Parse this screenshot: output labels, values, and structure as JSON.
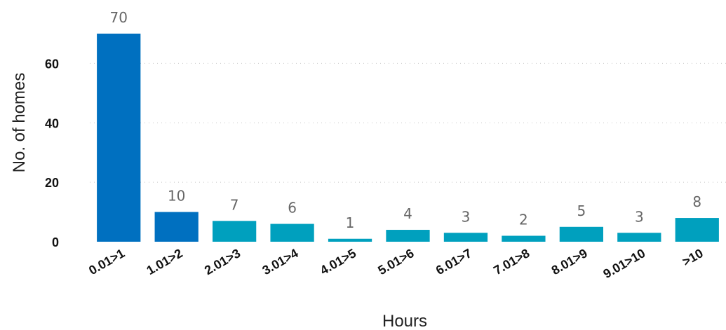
{
  "chart_data": {
    "type": "bar",
    "categories": [
      "0.01>1",
      "1.01>2",
      "2.01>3",
      "3.01>4",
      "4.01>5",
      "5.01>6",
      "6.01>7",
      "7.01>8",
      "8.01>9",
      "9.01>10",
      ">10"
    ],
    "values": [
      70,
      10,
      7,
      6,
      1,
      4,
      3,
      2,
      5,
      3,
      8
    ],
    "bar_colors": [
      "#0070C0",
      "#0070C0",
      "#00A0BE",
      "#00A0BE",
      "#00A0BE",
      "#00A0BE",
      "#00A0BE",
      "#00A0BE",
      "#00A0BE",
      "#00A0BE",
      "#00A0BE"
    ],
    "xlabel": "Hours",
    "ylabel": "No. of homes",
    "ylim": [
      0,
      70
    ],
    "yticks": [
      0,
      20,
      40,
      60
    ],
    "grid": true,
    "data_labels": true
  }
}
